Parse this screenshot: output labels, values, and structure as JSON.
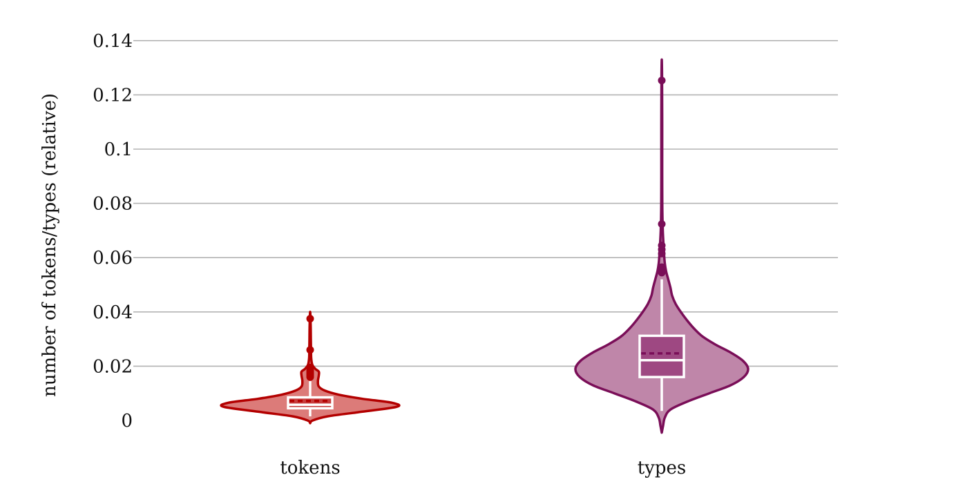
{
  "chart_data": {
    "type": "violin",
    "title": "",
    "xlabel": "",
    "ylabel": "number of tokens/types (relative)",
    "ylim": [
      -0.005,
      0.14
    ],
    "yticks": [
      0,
      0.02,
      0.04,
      0.06,
      0.08,
      0.1,
      0.12,
      0.14
    ],
    "ytick_labels": [
      "0",
      "0.02",
      "0.04",
      "0.06",
      "0.08",
      "0.1",
      "0.12",
      "0.14"
    ],
    "grid": true,
    "categories": [
      "tokens",
      "types"
    ],
    "series": [
      {
        "category": "tokens",
        "color": "#B30000",
        "fill_color": "#DC7B79",
        "box_fill": "#C73D3D",
        "violin_extent": [
          -0.001,
          0.04
        ],
        "density": [
          [
            -0.001,
            0.0
          ],
          [
            0.0,
            0.03
          ],
          [
            0.0015,
            0.2
          ],
          [
            0.003,
            0.55
          ],
          [
            0.005,
            1.0
          ],
          [
            0.0065,
            0.95
          ],
          [
            0.008,
            0.6
          ],
          [
            0.0095,
            0.33
          ],
          [
            0.011,
            0.17
          ],
          [
            0.0125,
            0.1
          ],
          [
            0.0145,
            0.09
          ],
          [
            0.0165,
            0.1
          ],
          [
            0.018,
            0.1
          ],
          [
            0.019,
            0.06
          ],
          [
            0.0205,
            0.025
          ],
          [
            0.023,
            0.012
          ],
          [
            0.026,
            0.01
          ],
          [
            0.03,
            0.008
          ],
          [
            0.035,
            0.006
          ],
          [
            0.04,
            0.0
          ]
        ],
        "box": {
          "q1": 0.0045,
          "median": 0.0058,
          "mean": 0.0072,
          "q3": 0.0085,
          "whisker_low": 0.0015,
          "whisker_high": 0.0145
        },
        "outliers": [
          0.0375,
          0.026,
          0.0195,
          0.0185,
          0.018,
          0.0175,
          0.017,
          0.0165,
          0.016
        ]
      },
      {
        "category": "types",
        "color": "#7A0E58",
        "fill_color": "#BF86A9",
        "box_fill": "#9E4882",
        "violin_extent": [
          -0.0045,
          0.133
        ],
        "density": [
          [
            -0.0045,
            0.0
          ],
          [
            -0.002,
            0.015
          ],
          [
            0.001,
            0.035
          ],
          [
            0.004,
            0.1
          ],
          [
            0.007,
            0.3
          ],
          [
            0.01,
            0.55
          ],
          [
            0.013,
            0.8
          ],
          [
            0.016,
            0.95
          ],
          [
            0.019,
            1.0
          ],
          [
            0.022,
            0.94
          ],
          [
            0.025,
            0.8
          ],
          [
            0.028,
            0.62
          ],
          [
            0.031,
            0.47
          ],
          [
            0.034,
            0.37
          ],
          [
            0.037,
            0.29
          ],
          [
            0.04,
            0.22
          ],
          [
            0.043,
            0.16
          ],
          [
            0.046,
            0.12
          ],
          [
            0.049,
            0.1
          ],
          [
            0.052,
            0.075
          ],
          [
            0.055,
            0.05
          ],
          [
            0.058,
            0.035
          ],
          [
            0.062,
            0.025
          ],
          [
            0.066,
            0.018
          ],
          [
            0.07,
            0.012
          ],
          [
            0.075,
            0.008
          ],
          [
            0.08,
            0.006
          ],
          [
            0.09,
            0.005
          ],
          [
            0.1,
            0.005
          ],
          [
            0.11,
            0.005
          ],
          [
            0.12,
            0.004
          ],
          [
            0.128,
            0.003
          ],
          [
            0.133,
            0.0
          ]
        ],
        "box": {
          "q1": 0.016,
          "median": 0.0222,
          "mean": 0.0247,
          "q3": 0.0312,
          "whisker_low": 0.0035,
          "whisker_high": 0.052
        },
        "outliers": [
          0.1253,
          0.0724,
          0.0645,
          0.063,
          0.0615,
          0.0565,
          0.0555,
          0.0545
        ]
      }
    ]
  }
}
